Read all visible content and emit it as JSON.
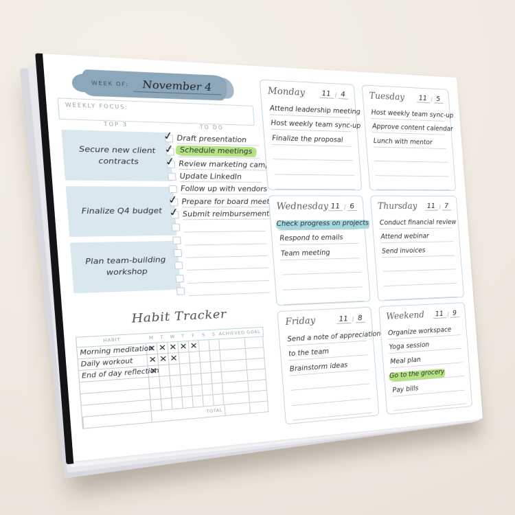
{
  "page": {
    "week_of_label": "WEEK OF:",
    "week_of_value": "November 4",
    "weekly_focus_label": "WEEKLY FOCUS:",
    "date_separator": "/",
    "icons": {
      "check_mark": "✓",
      "x_mark": "✕"
    },
    "colors": {
      "background": "#efe9e1",
      "paper": "#ffffff",
      "brush_stroke": "#8ca6ba",
      "top3_box_blue": "#d9e7ee",
      "day_box_border": "#bfd6e4",
      "highlight_green": "#b5e282",
      "highlight_teal": "#a6d9de",
      "ink": "#2e3338",
      "label_gray": "#99a0a9",
      "spine_black": "#141417"
    },
    "top3": {
      "label": "TOP 3",
      "items": [
        "Secure new client contracts",
        "Finalize Q4 budget",
        "Plan team-building workshop"
      ]
    },
    "todo": {
      "label": "TO DO",
      "items": [
        {
          "text": "Draft presentation",
          "checked": true,
          "highlight": null
        },
        {
          "text": "Schedule meetings",
          "checked": true,
          "highlight": "green"
        },
        {
          "text": "Review marketing campaigns",
          "checked": true,
          "highlight": null
        },
        {
          "text": "Update LinkedIn",
          "checked": false,
          "highlight": null
        },
        {
          "text": "Follow up with vendors",
          "checked": false,
          "highlight": null
        },
        {
          "text": "Prepare for board meeting",
          "checked": true,
          "highlight": null
        },
        {
          "text": "Submit reimbursements",
          "checked": true,
          "highlight": null
        },
        {
          "text": "",
          "checked": false,
          "highlight": null
        },
        {
          "text": "",
          "checked": false,
          "highlight": null
        },
        {
          "text": "",
          "checked": false,
          "highlight": null
        },
        {
          "text": "",
          "checked": false,
          "highlight": null
        },
        {
          "text": "",
          "checked": false,
          "highlight": null
        },
        {
          "text": "",
          "checked": false,
          "highlight": null
        }
      ]
    },
    "habit_tracker": {
      "title": "Habit Tracker",
      "columns": [
        "HABIT",
        "M",
        "T",
        "W",
        "T",
        "F",
        "S",
        "S",
        "ACHIEVED",
        "GOAL"
      ],
      "rows": [
        {
          "habit": "Morning meditation",
          "marks": [
            1,
            1,
            1,
            1,
            1,
            0,
            0
          ]
        },
        {
          "habit": "Daily workout",
          "marks": [
            1,
            1,
            1,
            0,
            0,
            0,
            0
          ]
        },
        {
          "habit": "End of day reflection",
          "marks": [
            1,
            0,
            0,
            0,
            0,
            0,
            0
          ]
        },
        {
          "habit": "",
          "marks": [
            0,
            0,
            0,
            0,
            0,
            0,
            0
          ]
        },
        {
          "habit": "",
          "marks": [
            0,
            0,
            0,
            0,
            0,
            0,
            0
          ]
        },
        {
          "habit": "",
          "marks": [
            0,
            0,
            0,
            0,
            0,
            0,
            0
          ]
        }
      ],
      "total_label": "TOTAL"
    },
    "days": [
      {
        "name": "Monday",
        "month": "11",
        "day": "4",
        "line_count": 6,
        "items": [
          {
            "text": "Attend leadership meeting",
            "highlight": null
          },
          {
            "text": "Host weekly team sync-up",
            "highlight": null
          },
          {
            "text": "Finalize the proposal",
            "highlight": null
          }
        ]
      },
      {
        "name": "Tuesday",
        "month": "11",
        "day": "5",
        "line_count": 6,
        "items": [
          {
            "text": "Host weekly team sync-up",
            "highlight": null
          },
          {
            "text": "Approve content calendar",
            "highlight": null
          },
          {
            "text": "Lunch with mentor",
            "highlight": null
          }
        ]
      },
      {
        "name": "Wednesday",
        "month": "11",
        "day": "6",
        "line_count": 6,
        "items": [
          {
            "text": "Check progress on projects",
            "highlight": "teal"
          },
          {
            "text": "Respond to emails",
            "highlight": null
          },
          {
            "text": "Team meeting",
            "highlight": null
          }
        ]
      },
      {
        "name": "Thursday",
        "month": "11",
        "day": "7",
        "line_count": 6,
        "items": [
          {
            "text": "Conduct financial review",
            "highlight": null
          },
          {
            "text": "Attend webinar",
            "highlight": null
          },
          {
            "text": "Send invoices",
            "highlight": null
          }
        ]
      },
      {
        "name": "Friday",
        "month": "11",
        "day": "8",
        "line_count": 6,
        "items": [
          {
            "text": "Send a note of appreciation",
            "highlight": null
          },
          {
            "text": "to the team",
            "highlight": null
          },
          {
            "text": "Brainstorm ideas",
            "highlight": null
          }
        ]
      },
      {
        "name": "Weekend",
        "month": "11",
        "day": "9",
        "line_count": 6,
        "items": [
          {
            "text": "Organize workspace",
            "highlight": null
          },
          {
            "text": "Yoga session",
            "highlight": null
          },
          {
            "text": "Meal plan",
            "highlight": null
          },
          {
            "text": "Go to the grocery",
            "highlight": "green"
          },
          {
            "text": "Pay bills",
            "highlight": null
          }
        ]
      }
    ]
  }
}
